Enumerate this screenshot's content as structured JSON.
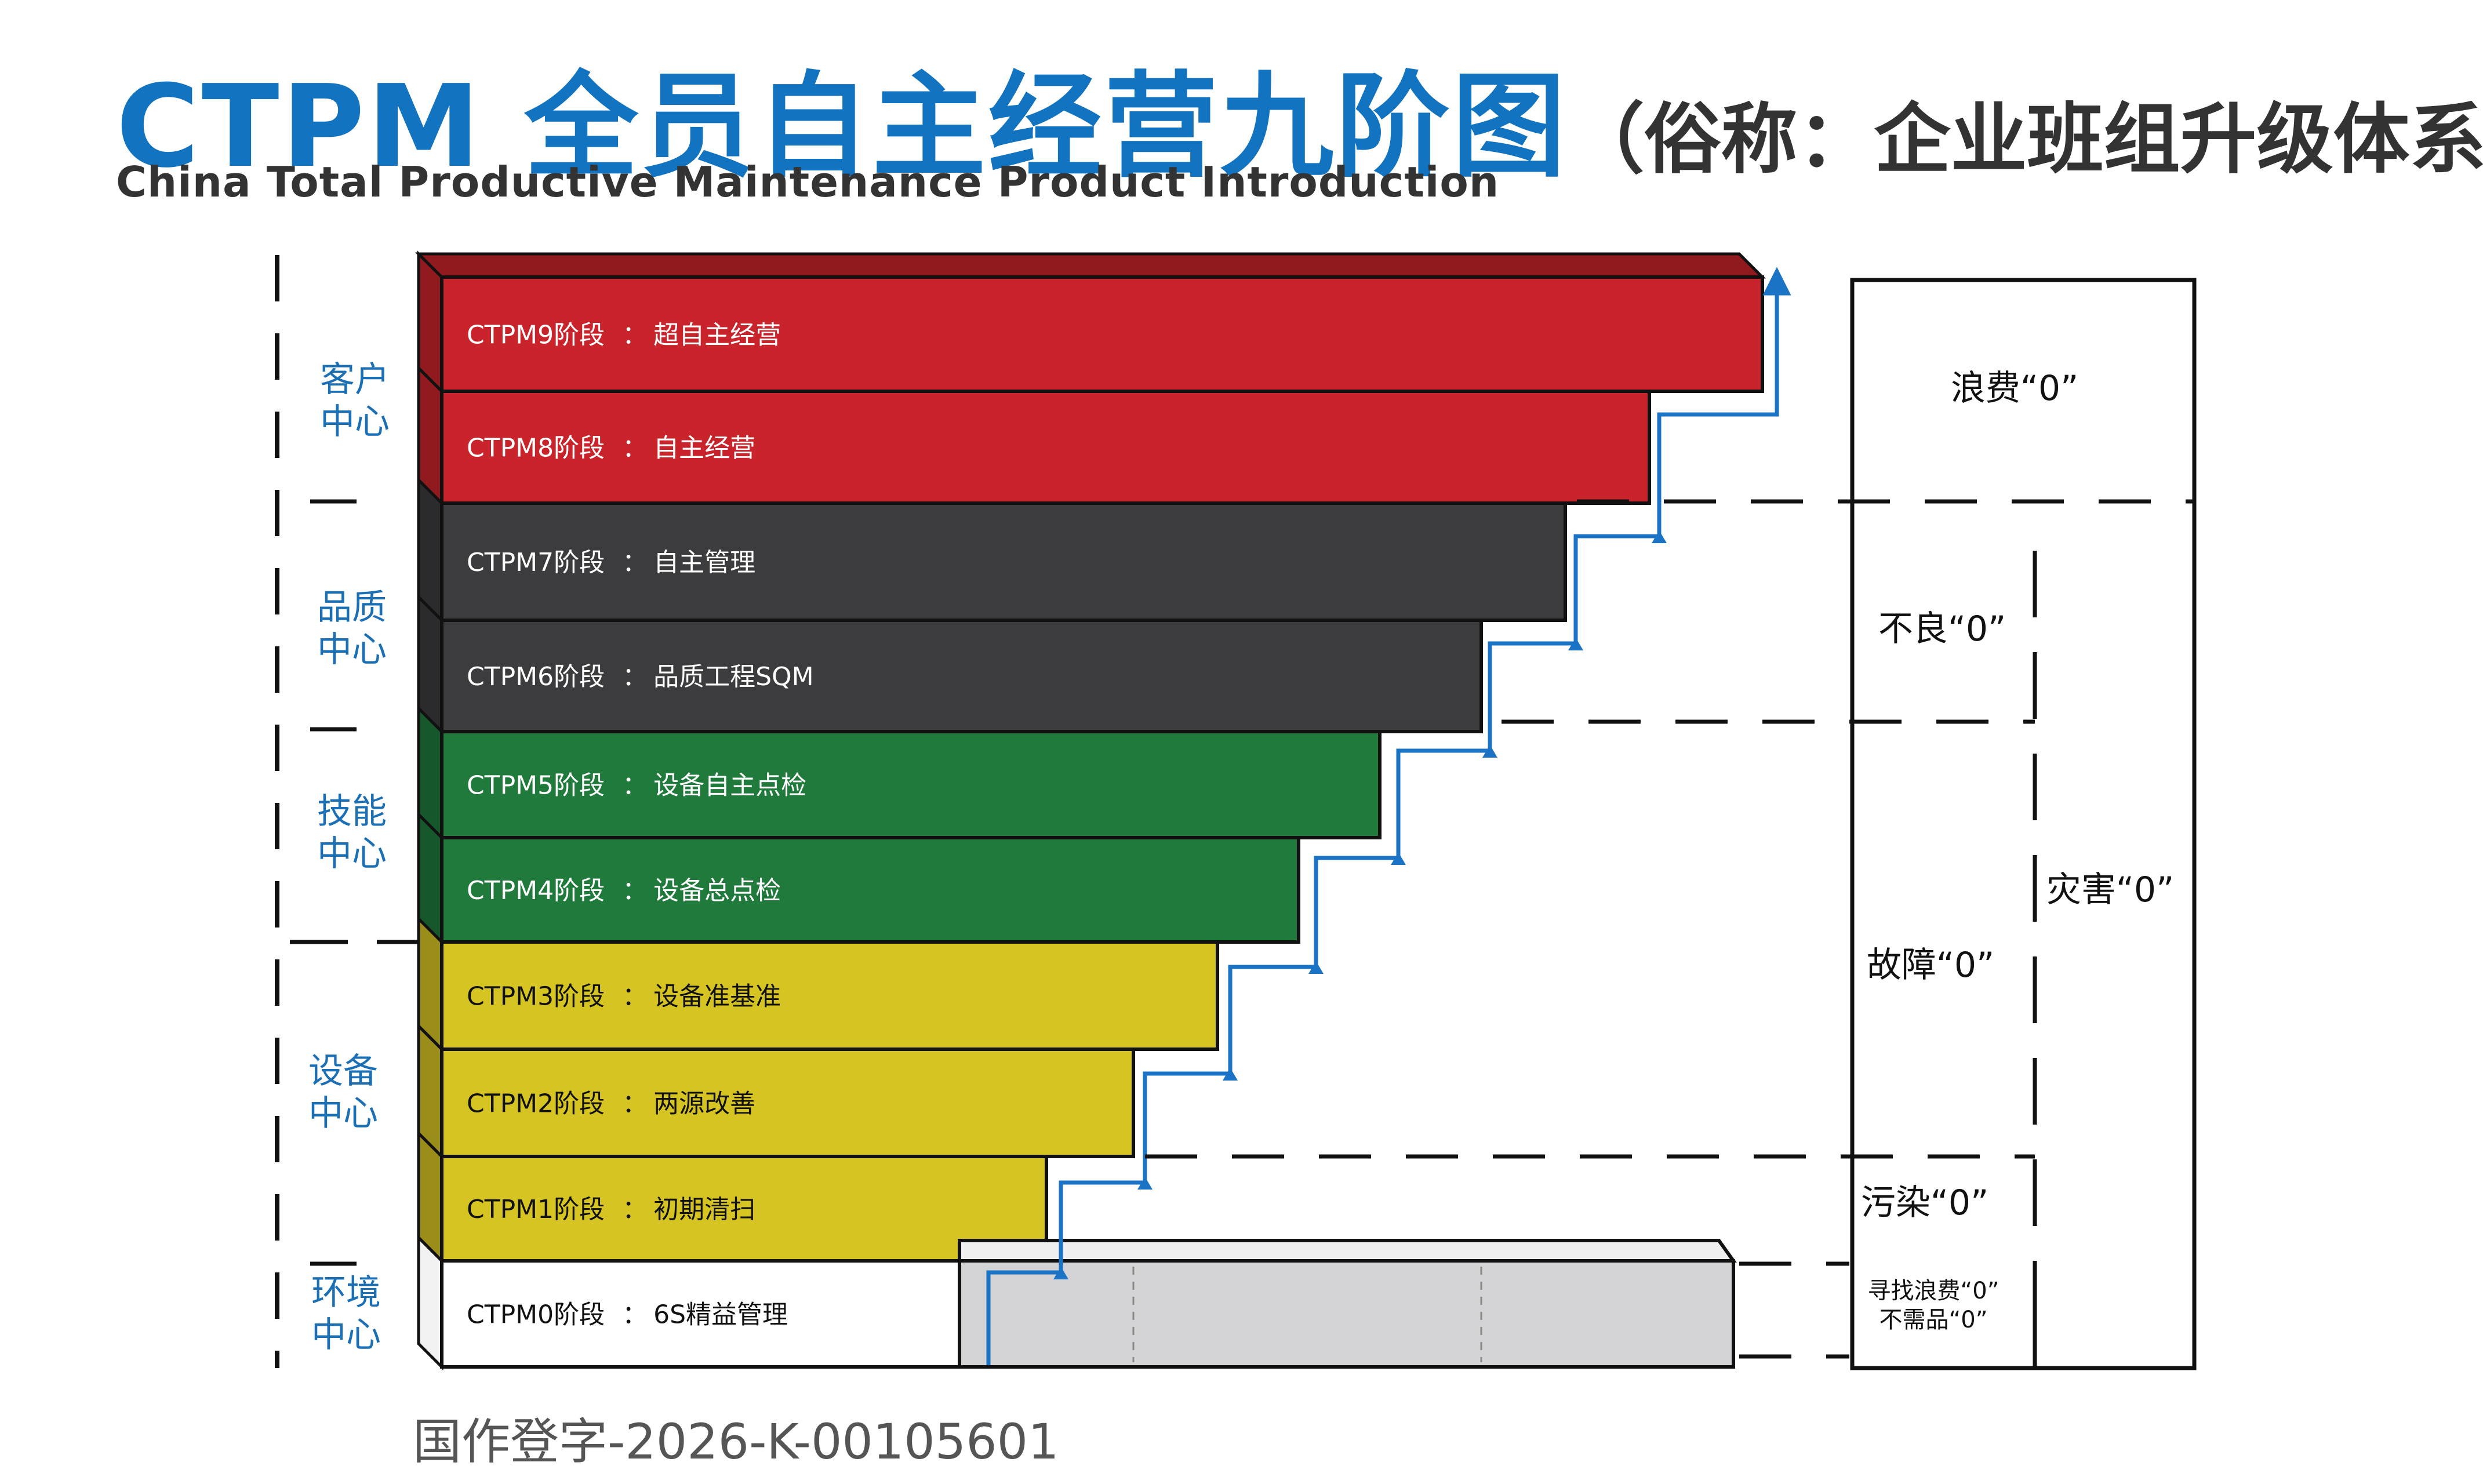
{
  "title": {
    "main": "CTPM 全员自主经营九阶图",
    "sub": "（俗称：企业班组升级体系）",
    "english": "China Total Productive Maintenance Product Introduction"
  },
  "stages": [
    {
      "code": "CTPM9阶段",
      "sep": "：",
      "name": "超自主经营",
      "color": "#c9242b"
    },
    {
      "code": "CTPM8阶段",
      "sep": "：",
      "name": "自主经营",
      "color": "#c9242b"
    },
    {
      "code": "CTPM7阶段",
      "sep": "：",
      "name": "自主管理",
      "color": "#3c3c3e"
    },
    {
      "code": "CTPM6阶段",
      "sep": "：",
      "name": "品质工程SQM",
      "color": "#3c3c3e"
    },
    {
      "code": "CTPM5阶段",
      "sep": "：",
      "name": "设备自主点检",
      "color": "#1f7a3c"
    },
    {
      "code": "CTPM4阶段",
      "sep": "：",
      "name": "设备总点检",
      "color": "#1f7a3c"
    },
    {
      "code": "CTPM3阶段",
      "sep": "：",
      "name": "设备准基准",
      "color": "#d6c423"
    },
    {
      "code": "CTPM2阶段",
      "sep": "：",
      "name": "两源改善",
      "color": "#d6c423"
    },
    {
      "code": "CTPM1阶段",
      "sep": "：",
      "name": "初期清扫",
      "color": "#d6c423"
    },
    {
      "code": "CTPM0阶段",
      "sep": "：",
      "name": "6S精益管理",
      "color": "#ffffff"
    }
  ],
  "departments": [
    {
      "line1": "客户",
      "line2": "中心"
    },
    {
      "line1": "品质",
      "line2": "中心"
    },
    {
      "line1": "技能",
      "line2": "中心"
    },
    {
      "line1": "设备",
      "line2": "中心"
    },
    {
      "line1": "环境",
      "line2": "中心"
    }
  ],
  "targets": {
    "waste": "浪费“0”",
    "defect": "不良“0”",
    "breakdown": "故障“0”",
    "disaster": "灾害“0”",
    "pollution": "污染“0”",
    "find_waste": "寻找浪费“0”",
    "unneeded": "不需品“0”"
  },
  "colors": {
    "arrow": "#1a73c4",
    "title_blue": "#1273c1"
  },
  "registration": "国作登字-2026-K-00105601"
}
